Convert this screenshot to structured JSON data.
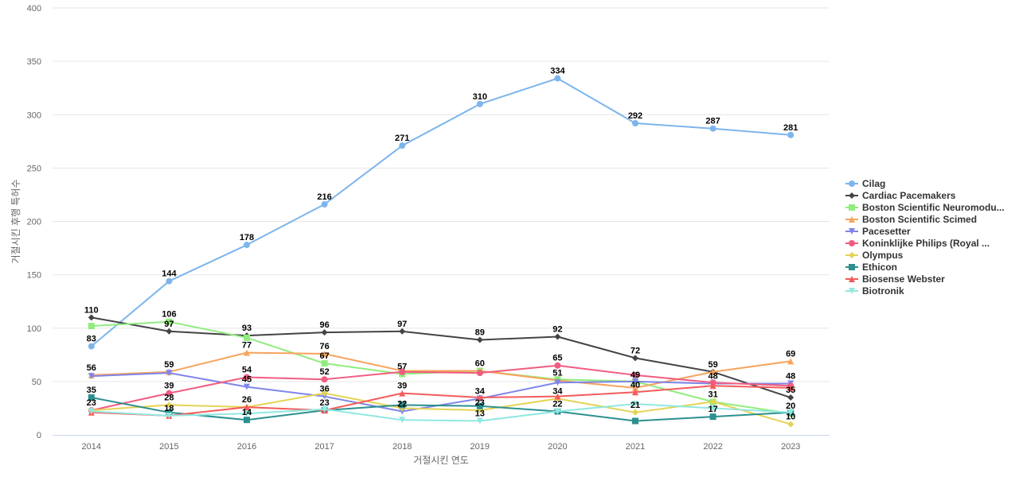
{
  "chart_data": {
    "type": "line",
    "title": "",
    "xlabel": "거절시킨 연도",
    "ylabel": "거절시킨 후행 특허수",
    "ylim": [
      0,
      400
    ],
    "yticks": [
      0,
      50,
      100,
      150,
      200,
      250,
      300,
      350,
      400
    ],
    "grid": true,
    "legend_position": "right",
    "categories": [
      "2014",
      "2015",
      "2016",
      "2017",
      "2018",
      "2019",
      "2020",
      "2021",
      "2022",
      "2023"
    ],
    "series": [
      {
        "name": "Cilag",
        "color": "#7cb5ec",
        "marker": "circle",
        "values": [
          83,
          144,
          178,
          216,
          271,
          310,
          334,
          292,
          287,
          281
        ]
      },
      {
        "name": "Cardiac Pacemakers",
        "color": "#434348",
        "marker": "diamond",
        "values": [
          110,
          97,
          93,
          96,
          97,
          89,
          92,
          72,
          59,
          35
        ]
      },
      {
        "name": "Boston Scientific Neuromodu...",
        "color": "#90ed7d",
        "marker": "square",
        "values": [
          102,
          106,
          91,
          67,
          57,
          60,
          52,
          50,
          31,
          20
        ]
      },
      {
        "name": "Boston Scientific Scimed",
        "color": "#f7a35c",
        "marker": "triangle",
        "values": [
          56,
          59,
          77,
          76,
          60,
          60,
          51,
          44,
          59,
          69
        ]
      },
      {
        "name": "Pacesetter",
        "color": "#8085e9",
        "marker": "triangle-down",
        "values": [
          55,
          58,
          45,
          36,
          22,
          34,
          49,
          50,
          48,
          48
        ]
      },
      {
        "name": "Koninklijke Philips (Royal ...",
        "color": "#f15c80",
        "marker": "circle",
        "values": [
          23,
          39,
          54,
          52,
          59,
          58,
          65,
          56,
          49,
          46
        ]
      },
      {
        "name": "Olympus",
        "color": "#e4d354",
        "marker": "diamond",
        "values": [
          23,
          28,
          26,
          39,
          25,
          23,
          34,
          21,
          31,
          10
        ]
      },
      {
        "name": "Ethicon",
        "color": "#2b908f",
        "marker": "square",
        "values": [
          35,
          21,
          14,
          23,
          28,
          27,
          22,
          13,
          17,
          21
        ]
      },
      {
        "name": "Biosense Webster",
        "color": "#f45b5b",
        "marker": "triangle",
        "values": [
          21,
          18,
          26,
          23,
          39,
          35,
          36,
          40,
          46,
          44
        ]
      },
      {
        "name": "Biotronik",
        "color": "#91e8e1",
        "marker": "triangle-down",
        "values": [
          22,
          18,
          20,
          24,
          14,
          13,
          22,
          29,
          25,
          21
        ]
      }
    ],
    "data_labels": [
      {
        "label": "83",
        "x": "2014",
        "y": 83
      },
      {
        "label": "110",
        "x": "2014",
        "y": 110
      },
      {
        "label": "56",
        "x": "2014",
        "y": 56
      },
      {
        "label": "35",
        "x": "2014",
        "y": 35
      },
      {
        "label": "23",
        "x": "2014",
        "y": 23
      },
      {
        "label": "144",
        "x": "2015",
        "y": 144
      },
      {
        "label": "106",
        "x": "2015",
        "y": 106
      },
      {
        "label": "97",
        "x": "2015",
        "y": 97
      },
      {
        "label": "59",
        "x": "2015",
        "y": 59
      },
      {
        "label": "39",
        "x": "2015",
        "y": 39
      },
      {
        "label": "28",
        "x": "2015",
        "y": 28
      },
      {
        "label": "18",
        "x": "2015",
        "y": 18
      },
      {
        "label": "178",
        "x": "2016",
        "y": 178
      },
      {
        "label": "93",
        "x": "2016",
        "y": 93
      },
      {
        "label": "77",
        "x": "2016",
        "y": 77
      },
      {
        "label": "54",
        "x": "2016",
        "y": 54
      },
      {
        "label": "45",
        "x": "2016",
        "y": 45
      },
      {
        "label": "26",
        "x": "2016",
        "y": 26
      },
      {
        "label": "14",
        "x": "2016",
        "y": 14
      },
      {
        "label": "216",
        "x": "2017",
        "y": 216
      },
      {
        "label": "96",
        "x": "2017",
        "y": 96
      },
      {
        "label": "76",
        "x": "2017",
        "y": 76
      },
      {
        "label": "67",
        "x": "2017",
        "y": 67
      },
      {
        "label": "52",
        "x": "2017",
        "y": 52
      },
      {
        "label": "36",
        "x": "2017",
        "y": 36
      },
      {
        "label": "23",
        "x": "2017",
        "y": 23
      },
      {
        "label": "271",
        "x": "2018",
        "y": 271
      },
      {
        "label": "97",
        "x": "2018",
        "y": 97
      },
      {
        "label": "57",
        "x": "2018",
        "y": 57
      },
      {
        "label": "39",
        "x": "2018",
        "y": 39
      },
      {
        "label": "22",
        "x": "2018",
        "y": 22
      },
      {
        "label": "310",
        "x": "2019",
        "y": 310
      },
      {
        "label": "89",
        "x": "2019",
        "y": 89
      },
      {
        "label": "60",
        "x": "2019",
        "y": 60
      },
      {
        "label": "34",
        "x": "2019",
        "y": 34
      },
      {
        "label": "23",
        "x": "2019",
        "y": 23
      },
      {
        "label": "13",
        "x": "2019",
        "y": 13
      },
      {
        "label": "334",
        "x": "2020",
        "y": 334
      },
      {
        "label": "92",
        "x": "2020",
        "y": 92
      },
      {
        "label": "65",
        "x": "2020",
        "y": 65
      },
      {
        "label": "51",
        "x": "2020",
        "y": 51
      },
      {
        "label": "34",
        "x": "2020",
        "y": 34
      },
      {
        "label": "22",
        "x": "2020",
        "y": 22
      },
      {
        "label": "292",
        "x": "2021",
        "y": 292
      },
      {
        "label": "72",
        "x": "2021",
        "y": 72
      },
      {
        "label": "49",
        "x": "2021",
        "y": 49
      },
      {
        "label": "40",
        "x": "2021",
        "y": 40
      },
      {
        "label": "21",
        "x": "2021",
        "y": 21
      },
      {
        "label": "287",
        "x": "2022",
        "y": 287
      },
      {
        "label": "59",
        "x": "2022",
        "y": 59
      },
      {
        "label": "48",
        "x": "2022",
        "y": 48
      },
      {
        "label": "31",
        "x": "2022",
        "y": 31
      },
      {
        "label": "17",
        "x": "2022",
        "y": 17
      },
      {
        "label": "281",
        "x": "2023",
        "y": 281
      },
      {
        "label": "69",
        "x": "2023",
        "y": 69
      },
      {
        "label": "48",
        "x": "2023",
        "y": 48
      },
      {
        "label": "35",
        "x": "2023",
        "y": 35
      },
      {
        "label": "20",
        "x": "2023",
        "y": 20
      },
      {
        "label": "10",
        "x": "2023",
        "y": 10
      }
    ]
  }
}
